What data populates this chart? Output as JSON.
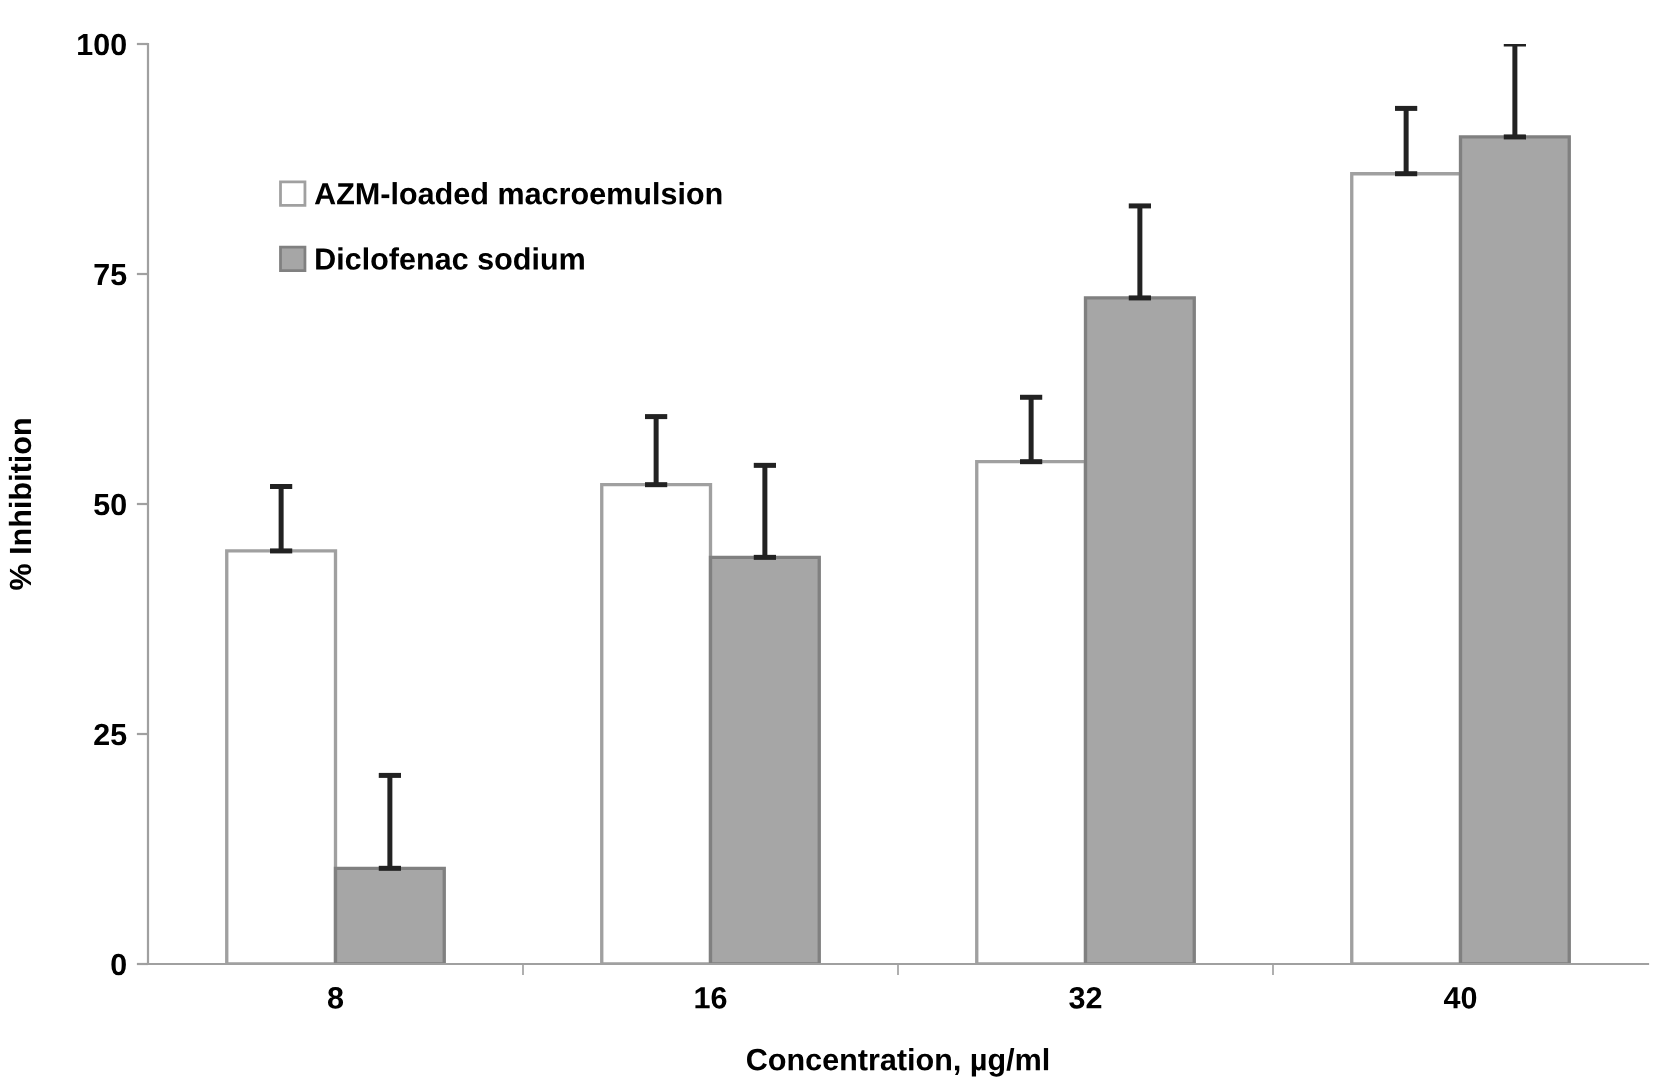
{
  "chart_data": {
    "type": "bar",
    "xlabel": "Concentration, µg/ml",
    "ylabel": "% Inhibition",
    "categories": [
      "8",
      "16",
      "32",
      "40"
    ],
    "series": [
      {
        "name": "AZM-loaded macroemulsion",
        "color": "#ffffff",
        "values": [
          44.9,
          52.1,
          54.6,
          85.9
        ],
        "errors": [
          [
            44.9,
            51.9
          ],
          [
            52.1,
            59.5
          ],
          [
            54.6,
            61.6
          ],
          [
            85.9,
            93.0
          ]
        ]
      },
      {
        "name": "Diclofenac sodium",
        "color": "#a6a6a6",
        "values": [
          10.4,
          44.2,
          72.4,
          89.9
        ],
        "errors": [
          [
            10.4,
            20.5
          ],
          [
            44.2,
            54.2
          ],
          [
            72.4,
            82.4
          ],
          [
            89.9,
            100
          ]
        ]
      }
    ],
    "ylim": [
      0,
      100
    ],
    "yticks": [
      0,
      25,
      50,
      75,
      100
    ],
    "grid": false,
    "legend": "top left"
  }
}
